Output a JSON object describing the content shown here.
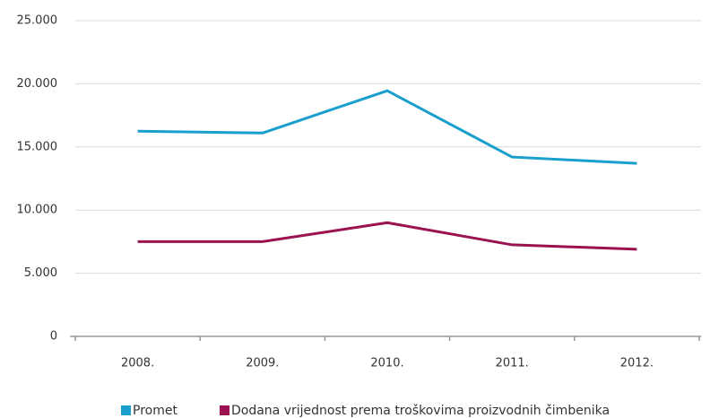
{
  "chart_data": {
    "type": "line",
    "categories": [
      "2008.",
      "2009.",
      "2010.",
      "2011.",
      "2012."
    ],
    "series": [
      {
        "name": "Promet",
        "color": "#1a9fcc",
        "values": [
          16250,
          16100,
          19450,
          14200,
          13700
        ]
      },
      {
        "name": "Dodana vrijednost prema troškovima proizvodnih čimbenika",
        "color": "#9b1250",
        "values": [
          7500,
          7500,
          9000,
          7250,
          6900
        ]
      }
    ],
    "ylim": [
      0,
      25000
    ],
    "yticks": [
      0,
      {
        "value": 5000,
        "label": "5.000"
      },
      {
        "value": 10000,
        "label": "10.000"
      },
      {
        "value": 15000,
        "label": "15.000"
      },
      {
        "value": 20000,
        "label": "20.000"
      },
      {
        "value": 25000,
        "label": "25.000"
      }
    ],
    "grid": true,
    "legend": "bottom"
  }
}
